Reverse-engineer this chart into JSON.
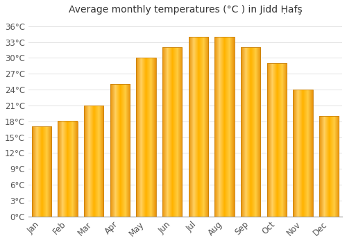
{
  "title": "Average monthly temperatures (°C ) in Jidd Ḥafş",
  "months": [
    "Jan",
    "Feb",
    "Mar",
    "Apr",
    "May",
    "Jun",
    "Jul",
    "Aug",
    "Sep",
    "Oct",
    "Nov",
    "Dec"
  ],
  "values": [
    17,
    18,
    21,
    25,
    30,
    32,
    34,
    34,
    32,
    29,
    24,
    19
  ],
  "bar_color_light": "#FFB300",
  "bar_color_dark": "#E8920A",
  "bar_edge_color": "#C8800A",
  "background_color": "#FFFFFF",
  "grid_color": "#DDDDDD",
  "yticks": [
    0,
    3,
    6,
    9,
    12,
    15,
    18,
    21,
    24,
    27,
    30,
    33,
    36
  ],
  "ylim": [
    0,
    37.5
  ],
  "title_fontsize": 10,
  "tick_fontsize": 8.5,
  "font_family": "DejaVu Sans"
}
